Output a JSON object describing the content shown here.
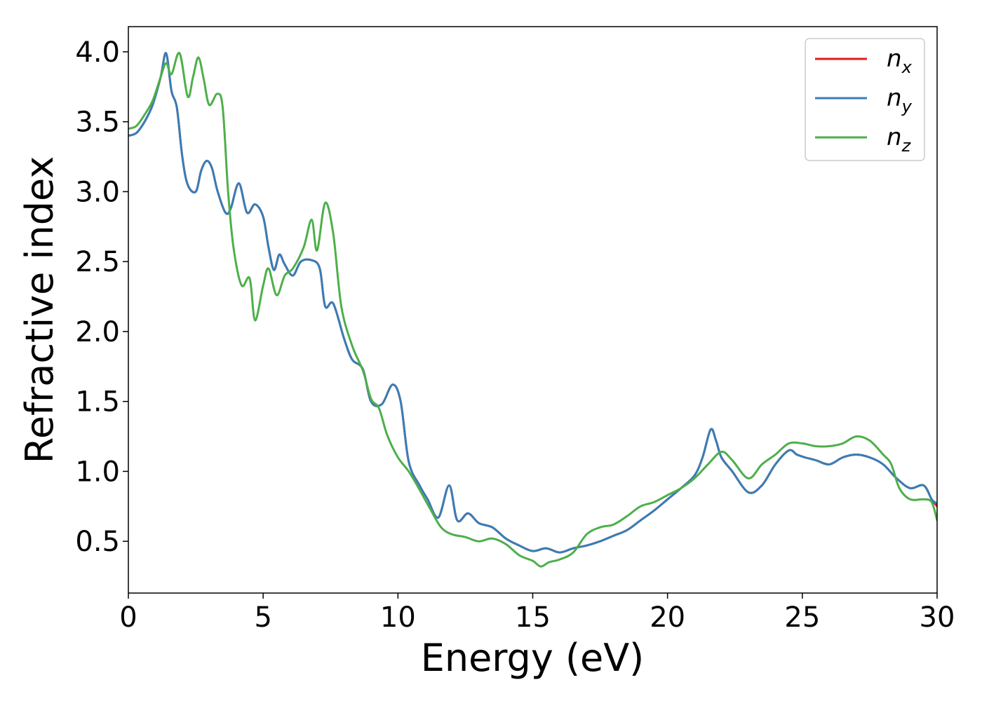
{
  "chart_data": {
    "type": "line",
    "title": "",
    "xlabel": "Energy (eV)",
    "ylabel": "Refractive index",
    "xlim": [
      0,
      30
    ],
    "ylim": [
      0.13,
      4.18
    ],
    "xticks": [
      0,
      5,
      10,
      15,
      20,
      25,
      30
    ],
    "xtick_labels": [
      "0",
      "5",
      "10",
      "15",
      "20",
      "25",
      "30"
    ],
    "yticks": [
      0.5,
      1.0,
      1.5,
      2.0,
      2.5,
      3.0,
      3.5,
      4.0
    ],
    "ytick_labels": [
      "0.5",
      "1.0",
      "1.5",
      "2.0",
      "2.5",
      "3.0",
      "3.5",
      "4.0"
    ],
    "grid": false,
    "legend_position": "top-right",
    "series": [
      {
        "name": "n",
        "subscript": "x",
        "color": "#e41a1c",
        "x": [
          0,
          0.3,
          0.6,
          0.9,
          1.2,
          1.4,
          1.6,
          1.8,
          2.0,
          2.2,
          2.5,
          2.7,
          2.9,
          3.1,
          3.3,
          3.6,
          3.8,
          4.1,
          4.4,
          4.7,
          5.0,
          5.2,
          5.4,
          5.6,
          5.8,
          6.1,
          6.4,
          6.8,
          7.1,
          7.3,
          7.6,
          8.0,
          8.3,
          8.7,
          9.0,
          9.4,
          9.8,
          10.1,
          10.4,
          10.8,
          11.1,
          11.5,
          11.9,
          12.2,
          12.6,
          13.0,
          13.5,
          14.0,
          14.5,
          15.0,
          15.5,
          16.0,
          16.5,
          17.0,
          17.5,
          18.0,
          18.5,
          19.0,
          19.5,
          20.0,
          20.5,
          21.0,
          21.3,
          21.6,
          21.8,
          22.0,
          22.4,
          23.0,
          23.5,
          24.0,
          24.5,
          24.8,
          25.1,
          25.5,
          26.0,
          26.5,
          27.0,
          27.5,
          28.0,
          28.5,
          29.0,
          29.5,
          29.8,
          30.0
        ],
        "y": [
          3.4,
          3.42,
          3.5,
          3.62,
          3.82,
          3.99,
          3.72,
          3.6,
          3.25,
          3.05,
          3.0,
          3.15,
          3.22,
          3.17,
          3.01,
          2.85,
          2.88,
          3.06,
          2.85,
          2.91,
          2.82,
          2.6,
          2.44,
          2.55,
          2.48,
          2.4,
          2.5,
          2.51,
          2.45,
          2.18,
          2.2,
          1.95,
          1.8,
          1.73,
          1.5,
          1.48,
          1.62,
          1.5,
          1.07,
          0.9,
          0.8,
          0.67,
          0.9,
          0.65,
          0.7,
          0.63,
          0.6,
          0.52,
          0.47,
          0.43,
          0.45,
          0.42,
          0.45,
          0.47,
          0.5,
          0.54,
          0.58,
          0.65,
          0.72,
          0.8,
          0.88,
          0.97,
          1.1,
          1.3,
          1.22,
          1.1,
          1.0,
          0.85,
          0.9,
          1.05,
          1.15,
          1.12,
          1.1,
          1.08,
          1.05,
          1.1,
          1.12,
          1.1,
          1.05,
          0.95,
          0.88,
          0.9,
          0.8,
          0.75
        ]
      },
      {
        "name": "n",
        "subscript": "y",
        "color": "#377eb8",
        "x": [
          0,
          0.3,
          0.6,
          0.9,
          1.2,
          1.4,
          1.6,
          1.8,
          2.0,
          2.2,
          2.5,
          2.7,
          2.9,
          3.1,
          3.3,
          3.6,
          3.8,
          4.1,
          4.4,
          4.7,
          5.0,
          5.2,
          5.4,
          5.6,
          5.8,
          6.1,
          6.4,
          6.8,
          7.1,
          7.3,
          7.6,
          8.0,
          8.3,
          8.7,
          9.0,
          9.4,
          9.8,
          10.1,
          10.4,
          10.8,
          11.1,
          11.5,
          11.9,
          12.2,
          12.6,
          13.0,
          13.5,
          14.0,
          14.5,
          15.0,
          15.5,
          16.0,
          16.5,
          17.0,
          17.5,
          18.0,
          18.5,
          19.0,
          19.5,
          20.0,
          20.5,
          21.0,
          21.3,
          21.6,
          21.8,
          22.0,
          22.4,
          23.0,
          23.5,
          24.0,
          24.5,
          24.8,
          25.1,
          25.5,
          26.0,
          26.5,
          27.0,
          27.5,
          28.0,
          28.5,
          29.0,
          29.5,
          29.8,
          30.0
        ],
        "y": [
          3.4,
          3.42,
          3.5,
          3.62,
          3.82,
          3.99,
          3.72,
          3.6,
          3.25,
          3.05,
          3.0,
          3.15,
          3.22,
          3.17,
          3.01,
          2.85,
          2.88,
          3.06,
          2.85,
          2.91,
          2.82,
          2.6,
          2.44,
          2.55,
          2.48,
          2.4,
          2.5,
          2.51,
          2.45,
          2.18,
          2.2,
          1.95,
          1.8,
          1.73,
          1.5,
          1.48,
          1.62,
          1.5,
          1.07,
          0.9,
          0.8,
          0.67,
          0.9,
          0.65,
          0.7,
          0.63,
          0.6,
          0.52,
          0.47,
          0.43,
          0.45,
          0.42,
          0.45,
          0.47,
          0.5,
          0.54,
          0.58,
          0.65,
          0.72,
          0.8,
          0.88,
          0.97,
          1.1,
          1.3,
          1.22,
          1.1,
          1.0,
          0.85,
          0.9,
          1.05,
          1.15,
          1.12,
          1.1,
          1.08,
          1.05,
          1.1,
          1.12,
          1.1,
          1.05,
          0.95,
          0.88,
          0.9,
          0.8,
          0.77
        ]
      },
      {
        "name": "n",
        "subscript": "z",
        "color": "#4daf4a",
        "x": [
          0,
          0.3,
          0.6,
          0.9,
          1.2,
          1.4,
          1.6,
          1.9,
          2.2,
          2.4,
          2.6,
          2.8,
          3.0,
          3.3,
          3.5,
          3.7,
          3.9,
          4.2,
          4.5,
          4.7,
          5.0,
          5.2,
          5.5,
          5.8,
          6.1,
          6.5,
          6.8,
          7.0,
          7.3,
          7.6,
          7.9,
          8.3,
          8.7,
          9.0,
          9.3,
          9.6,
          10.0,
          10.4,
          10.8,
          11.2,
          11.6,
          12.0,
          12.5,
          13.0,
          13.5,
          14.0,
          14.5,
          15.0,
          15.3,
          15.6,
          16.0,
          16.5,
          17.0,
          17.5,
          18.0,
          18.5,
          19.0,
          19.5,
          20.0,
          20.5,
          21.0,
          21.5,
          22.0,
          22.4,
          23.0,
          23.5,
          24.0,
          24.5,
          25.0,
          25.5,
          26.0,
          26.5,
          27.0,
          27.5,
          28.0,
          28.3,
          28.6,
          29.0,
          29.5,
          29.8,
          30.0
        ],
        "y": [
          3.45,
          3.47,
          3.55,
          3.65,
          3.82,
          3.92,
          3.84,
          3.99,
          3.68,
          3.82,
          3.96,
          3.8,
          3.62,
          3.7,
          3.6,
          3.0,
          2.6,
          2.33,
          2.38,
          2.08,
          2.33,
          2.45,
          2.26,
          2.4,
          2.45,
          2.6,
          2.8,
          2.58,
          2.92,
          2.7,
          2.18,
          1.9,
          1.72,
          1.52,
          1.45,
          1.26,
          1.1,
          1.0,
          0.87,
          0.73,
          0.6,
          0.55,
          0.53,
          0.5,
          0.52,
          0.48,
          0.4,
          0.36,
          0.32,
          0.35,
          0.37,
          0.42,
          0.55,
          0.6,
          0.62,
          0.68,
          0.75,
          0.78,
          0.83,
          0.88,
          0.95,
          1.05,
          1.14,
          1.08,
          0.95,
          1.05,
          1.12,
          1.2,
          1.2,
          1.18,
          1.18,
          1.2,
          1.25,
          1.22,
          1.12,
          1.05,
          0.88,
          0.8,
          0.8,
          0.78,
          0.65
        ]
      }
    ]
  }
}
